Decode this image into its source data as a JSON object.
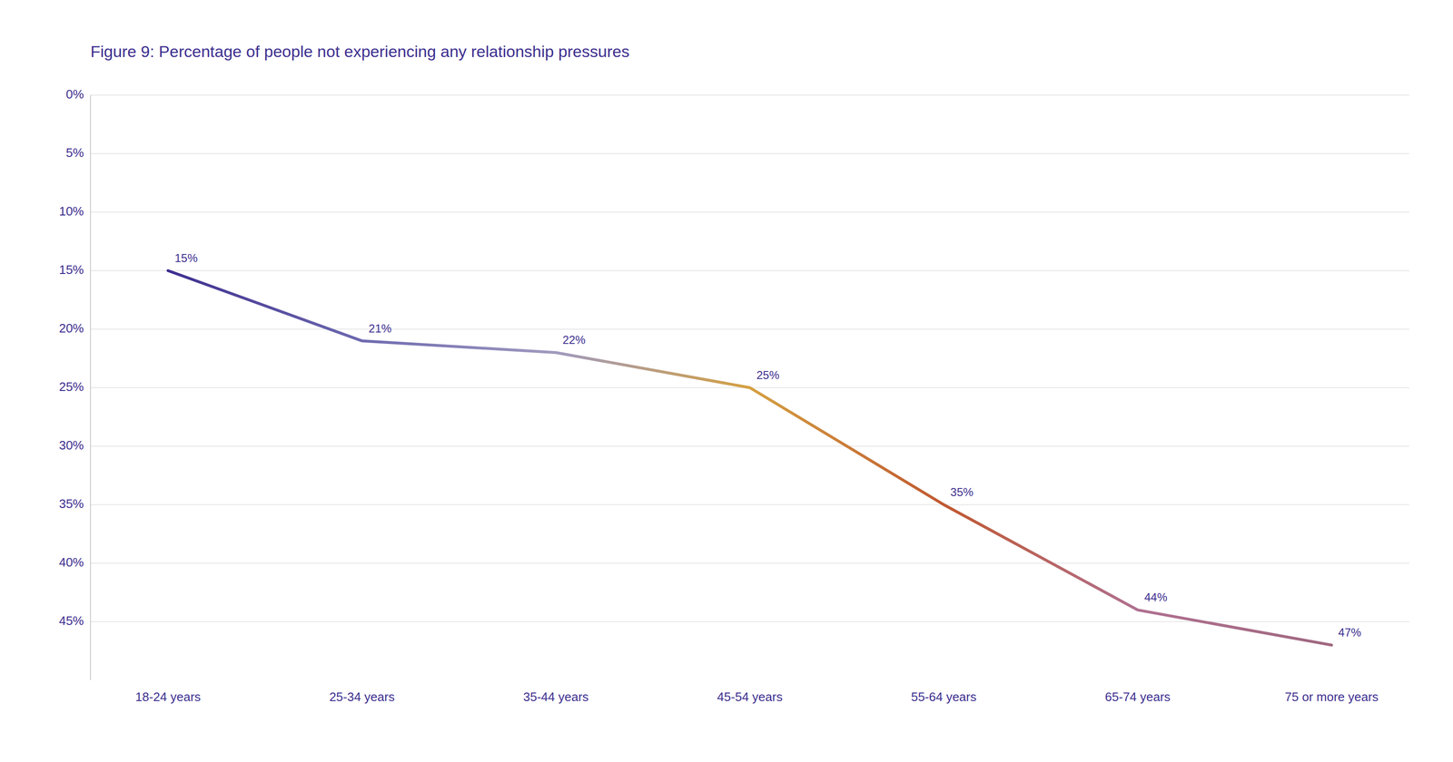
{
  "chart_data": {
    "type": "line",
    "title": "Figure 9: Percentage of people not experiencing any relationship pressures",
    "categories": [
      "18-24 years",
      "25-34 years",
      "35-44 years",
      "45-54 years",
      "55-64 years",
      "65-74 years",
      "75 or more years"
    ],
    "values": [
      15,
      21,
      22,
      25,
      35,
      44,
      47
    ],
    "colors": [
      "#3d2f8f",
      "#6e6ab0",
      "#a09abf",
      "#d4a040",
      "#c05830",
      "#b07090",
      "#a06880"
    ],
    "ylim": [
      50,
      0
    ],
    "yticks": [
      {
        "value": 0,
        "label": "0%"
      },
      {
        "value": 5,
        "label": "5%"
      },
      {
        "value": 10,
        "label": "10%"
      },
      {
        "value": 15,
        "label": "15%"
      },
      {
        "value": 20,
        "label": "20%"
      },
      {
        "value": 25,
        "label": "25%"
      },
      {
        "value": 30,
        "label": "30%"
      },
      {
        "value": 35,
        "label": "35%"
      },
      {
        "value": 40,
        "label": "40%"
      },
      {
        "value": 45,
        "label": "45%"
      }
    ],
    "grid": true,
    "data_labels": true,
    "value_labels": [
      "15%",
      "21%",
      "22%",
      "25%",
      "35%",
      "44%",
      "47%"
    ]
  }
}
